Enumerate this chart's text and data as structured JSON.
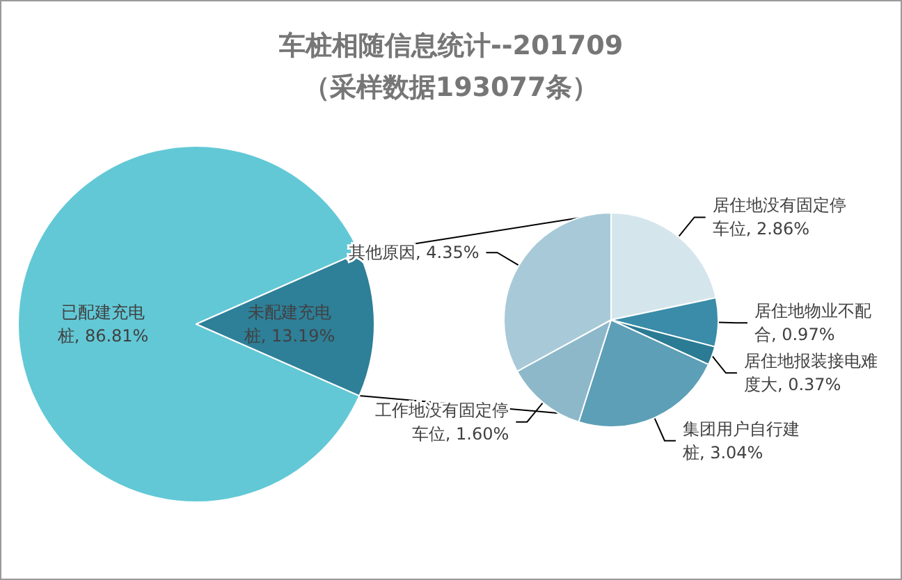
{
  "chart_data": [
    {
      "type": "pie",
      "title": "车桩相随信息统计--201709\n（采样数据193077条）",
      "categories": [
        "已配建充电桩",
        "未配建充电桩"
      ],
      "values": [
        86.81,
        13.19
      ],
      "colors": [
        "#62c8d6",
        "#2e7f98"
      ],
      "value_labels": [
        "86.81%",
        "13.19%"
      ]
    },
    {
      "type": "pie",
      "categories": [
        "居住地没有固定停车位",
        "居住地物业不配合",
        "居住地报装接电难度大",
        "集团用户自行建桩",
        "工作地没有固定停车位",
        "其他原因"
      ],
      "values": [
        2.86,
        0.97,
        0.37,
        3.04,
        1.6,
        4.35
      ],
      "colors": [
        "#d5e5ec",
        "#3a8ca8",
        "#2a7b93",
        "#5c9fb7",
        "#8db8ca",
        "#a8cad8"
      ],
      "value_labels": [
        "2.86%",
        "0.97%",
        "0.37%",
        "3.04%",
        "1.60%",
        "4.35%"
      ]
    }
  ]
}
